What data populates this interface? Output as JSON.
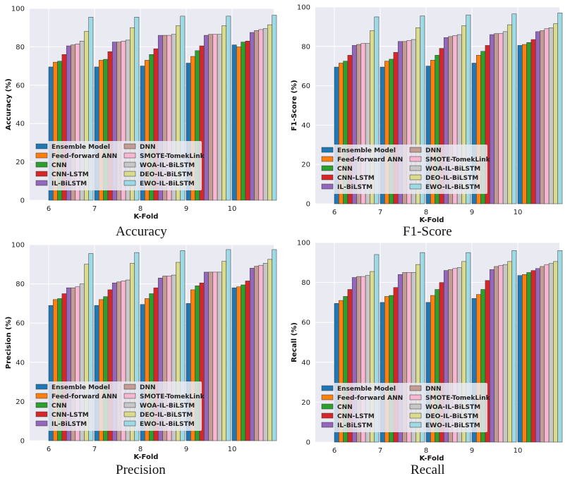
{
  "legend_order": [
    "Ensemble Model",
    "DNN",
    "Feed-forward ANN",
    "SMOTE-TomekLink",
    "CNN",
    "WOA-IL-BiLSTM",
    "CNN-LSTM",
    "DEO-IL-BiLSTM",
    "IL-BiLSTM",
    "EWO-IL-BiLSTM"
  ],
  "series_colors": {
    "Ensemble Model": "#1f77b4",
    "Feed-forward ANN": "#ff7f0e",
    "CNN": "#2ca02c",
    "CNN-LSTM": "#d62728",
    "IL-BiLSTM": "#9467bd",
    "DNN": "#c49c94",
    "SMOTE-TomekLink": "#f7b6d2",
    "WOA-IL-BiLSTM": "#c7c7c7",
    "DEO-IL-BiLSTM": "#dbdb8d",
    "EWO-IL-BiLSTM": "#9edae5"
  },
  "chart_data": [
    {
      "type": "bar",
      "caption": "Accuracy",
      "xlabel": "K-Fold",
      "ylabel": "Accuracy (%)",
      "ylim": [
        0,
        100
      ],
      "yticks": [
        0,
        20,
        40,
        60,
        80,
        100
      ],
      "grid": true,
      "legend_position": "lower-left",
      "categories": [
        "6",
        "7",
        "8",
        "9",
        "10"
      ],
      "series": [
        {
          "name": "Ensemble Model",
          "values": [
            69.5,
            69.5,
            70,
            71.5,
            81
          ]
        },
        {
          "name": "Feed-forward ANN",
          "values": [
            72,
            73,
            73,
            75,
            80
          ]
        },
        {
          "name": "CNN",
          "values": [
            72.5,
            73.5,
            76,
            78,
            82.5
          ]
        },
        {
          "name": "CNN-LSTM",
          "values": [
            76,
            77.5,
            79,
            80.5,
            83
          ]
        },
        {
          "name": "IL-BiLSTM",
          "values": [
            80.5,
            82.5,
            86,
            86,
            87.5
          ]
        },
        {
          "name": "DNN",
          "values": [
            81,
            82.5,
            86,
            86.5,
            88.5
          ]
        },
        {
          "name": "SMOTE-TomekLink",
          "values": [
            81.5,
            83,
            86,
            86.5,
            89
          ]
        },
        {
          "name": "WOA-IL-BiLSTM",
          "values": [
            83,
            83.5,
            86.5,
            86.5,
            89.5
          ]
        },
        {
          "name": "DEO-IL-BiLSTM",
          "values": [
            88,
            90,
            91,
            91,
            91.5
          ]
        },
        {
          "name": "EWO-IL-BiLSTM",
          "values": [
            95.5,
            95.5,
            96,
            96,
            96.5
          ]
        }
      ]
    },
    {
      "type": "bar",
      "caption": "F1-Score",
      "xlabel": "K-Fold",
      "ylabel": "F1-Score (%)",
      "ylim": [
        0,
        100
      ],
      "yticks": [
        0,
        20,
        40,
        60,
        80,
        100
      ],
      "grid": true,
      "legend_position": "lower-left",
      "categories": [
        "6",
        "7",
        "8",
        "9",
        "10"
      ],
      "series": [
        {
          "name": "Ensemble Model",
          "values": [
            69.5,
            69.5,
            70,
            71.5,
            80.5
          ]
        },
        {
          "name": "Feed-forward ANN",
          "values": [
            71.5,
            72.5,
            73,
            75.5,
            81
          ]
        },
        {
          "name": "CNN",
          "values": [
            72.5,
            73.5,
            75.5,
            77.5,
            82
          ]
        },
        {
          "name": "CNN-LSTM",
          "values": [
            75.5,
            77,
            79,
            80.5,
            83.5
          ]
        },
        {
          "name": "IL-BiLSTM",
          "values": [
            80.5,
            82.5,
            84.5,
            86,
            87.5
          ]
        },
        {
          "name": "DNN",
          "values": [
            81,
            82.5,
            85,
            86.5,
            88
          ]
        },
        {
          "name": "SMOTE-TomekLink",
          "values": [
            81.5,
            83,
            85.5,
            86.5,
            89
          ]
        },
        {
          "name": "WOA-IL-BiLSTM",
          "values": [
            81.5,
            83.5,
            86,
            87.5,
            89.5
          ]
        },
        {
          "name": "DEO-IL-BiLSTM",
          "values": [
            88,
            89.5,
            90.5,
            91,
            91.5
          ]
        },
        {
          "name": "EWO-IL-BiLSTM",
          "values": [
            95,
            95.5,
            96,
            96.5,
            97
          ]
        }
      ]
    },
    {
      "type": "bar",
      "caption": "Precision",
      "xlabel": "K-Fold",
      "ylabel": "Precision (%)",
      "ylim": [
        0,
        100
      ],
      "yticks": [
        0,
        20,
        40,
        60,
        80,
        100
      ],
      "grid": true,
      "legend_position": "lower-left",
      "categories": [
        "6",
        "7",
        "8",
        "9",
        "10"
      ],
      "series": [
        {
          "name": "Ensemble Model",
          "values": [
            69,
            69,
            69.5,
            70,
            78
          ]
        },
        {
          "name": "Feed-forward ANN",
          "values": [
            72,
            72,
            72.5,
            77,
            78.5
          ]
        },
        {
          "name": "CNN",
          "values": [
            72.5,
            73.5,
            75,
            79,
            79.5
          ]
        },
        {
          "name": "CNN-LSTM",
          "values": [
            75,
            77,
            78,
            80.5,
            81.5
          ]
        },
        {
          "name": "IL-BiLSTM",
          "values": [
            78,
            80.5,
            83,
            86,
            88
          ]
        },
        {
          "name": "DNN",
          "values": [
            78,
            81,
            84,
            86,
            89
          ]
        },
        {
          "name": "SMOTE-TomekLink",
          "values": [
            78.5,
            81.5,
            84,
            86,
            89.5
          ]
        },
        {
          "name": "WOA-IL-BiLSTM",
          "values": [
            80,
            82,
            84.5,
            86,
            90.5
          ]
        },
        {
          "name": "DEO-IL-BiLSTM",
          "values": [
            90,
            90.5,
            91,
            91.5,
            92.5
          ]
        },
        {
          "name": "EWO-IL-BiLSTM",
          "values": [
            95.5,
            96,
            97,
            97.5,
            97.5
          ]
        }
      ]
    },
    {
      "type": "bar",
      "caption": "Recall",
      "xlabel": "K-Fold",
      "ylabel": "Recall (%)",
      "ylim": [
        0,
        100
      ],
      "yticks": [
        0,
        20,
        40,
        60,
        80,
        100
      ],
      "grid": true,
      "legend_position": "lower-left",
      "categories": [
        "6",
        "7",
        "8",
        "9",
        "10"
      ],
      "series": [
        {
          "name": "Ensemble Model",
          "values": [
            69.5,
            70,
            70,
            72,
            83.5
          ]
        },
        {
          "name": "Feed-forward ANN",
          "values": [
            71,
            73,
            73.5,
            74,
            84
          ]
        },
        {
          "name": "CNN",
          "values": [
            73,
            73.5,
            76.5,
            76.5,
            85
          ]
        },
        {
          "name": "CNN-LSTM",
          "values": [
            76.5,
            77.5,
            80,
            81,
            86
          ]
        },
        {
          "name": "IL-BiLSTM",
          "values": [
            82.5,
            84,
            86,
            86.5,
            87
          ]
        },
        {
          "name": "DNN",
          "values": [
            83,
            85,
            86.5,
            88,
            88
          ]
        },
        {
          "name": "SMOTE-TomekLink",
          "values": [
            83,
            85,
            87,
            88.5,
            89
          ]
        },
        {
          "name": "WOA-IL-BiLSTM",
          "values": [
            83.5,
            85,
            87.5,
            89,
            89.5
          ]
        },
        {
          "name": "DEO-IL-BiLSTM",
          "values": [
            85.5,
            89,
            90.5,
            90.5,
            90.5
          ]
        },
        {
          "name": "EWO-IL-BiLSTM",
          "values": [
            94,
            95,
            95,
            96,
            96
          ]
        }
      ]
    }
  ]
}
